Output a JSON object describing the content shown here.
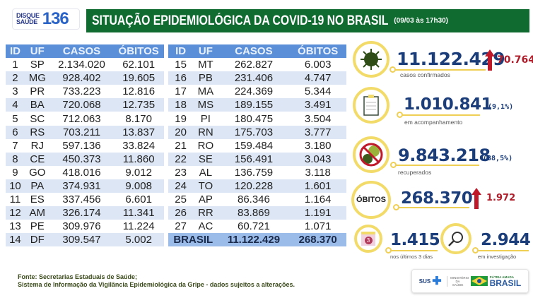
{
  "logo": {
    "line1": "DISQUE",
    "line2": "SAÚDE",
    "number": "136"
  },
  "header": {
    "title": "SITUAÇÃO EPIDEMIOLÓGICA DA COVID-19 NO BRASIL",
    "date": "(09/03 às 17h30)"
  },
  "table": {
    "columns": [
      "ID",
      "UF",
      "CASOS",
      "ÓBITOS"
    ],
    "rows": [
      [
        "1",
        "SP",
        "2.134.020",
        "62.101"
      ],
      [
        "2",
        "MG",
        "928.402",
        "19.605"
      ],
      [
        "3",
        "PR",
        "733.223",
        "12.816"
      ],
      [
        "4",
        "BA",
        "720.068",
        "12.735"
      ],
      [
        "5",
        "SC",
        "712.063",
        "8.170"
      ],
      [
        "6",
        "RS",
        "703.211",
        "13.837"
      ],
      [
        "7",
        "RJ",
        "597.136",
        "33.824"
      ],
      [
        "8",
        "CE",
        "450.373",
        "11.860"
      ],
      [
        "9",
        "GO",
        "418.016",
        "9.012"
      ],
      [
        "10",
        "PA",
        "374.931",
        "9.008"
      ],
      [
        "11",
        "ES",
        "337.456",
        "6.601"
      ],
      [
        "12",
        "AM",
        "326.174",
        "11.341"
      ],
      [
        "13",
        "PE",
        "309.976",
        "11.224"
      ],
      [
        "14",
        "DF",
        "309.547",
        "5.002"
      ],
      [
        "15",
        "MT",
        "262.827",
        "6.003"
      ],
      [
        "16",
        "PB",
        "231.406",
        "4.747"
      ],
      [
        "17",
        "MA",
        "224.369",
        "5.344"
      ],
      [
        "18",
        "MS",
        "189.155",
        "3.491"
      ],
      [
        "19",
        "PI",
        "180.475",
        "3.504"
      ],
      [
        "20",
        "RN",
        "175.703",
        "3.777"
      ],
      [
        "21",
        "RO",
        "159.484",
        "3.180"
      ],
      [
        "22",
        "SE",
        "156.491",
        "3.043"
      ],
      [
        "23",
        "AL",
        "136.759",
        "3.118"
      ],
      [
        "24",
        "TO",
        "120.228",
        "1.601"
      ],
      [
        "25",
        "AP",
        "86.346",
        "1.164"
      ],
      [
        "26",
        "RR",
        "83.869",
        "1.191"
      ],
      [
        "27",
        "AC",
        "60.721",
        "1.071"
      ]
    ],
    "total": {
      "label": "BRASIL",
      "casos": "11.122.429",
      "obitos": "268.370"
    }
  },
  "stats": {
    "confirmados": {
      "value": "11.122.429",
      "delta": "70.764",
      "label": "casos confirmados",
      "icon": "virus-icon"
    },
    "acompanhamento": {
      "value": "1.010.841",
      "pct": "(9,1%)",
      "label": "em acompanhamento",
      "icon": "clipboard-icon"
    },
    "recuperados": {
      "value": "9.843.218",
      "pct": "(88,5%)",
      "label": "recuperados",
      "icon": "no-virus-icon"
    },
    "obitos": {
      "badge": "ÓBITOS",
      "value": "268.370",
      "delta": "1.972"
    },
    "ultimos": {
      "value": "1.415",
      "label": "nos últimos 3 dias",
      "calendar": "3",
      "icon": "calendar-icon"
    },
    "investigacao": {
      "value": "2.944",
      "label": "em investigação",
      "icon": "magnifier-icon"
    }
  },
  "footer": {
    "line1": "Fonte: Secretarias Estaduais de Saúde;",
    "line2": "Sistema de Informação da Vigilância Epidemiológica da Gripe - dados sujeitos a alterações."
  },
  "logos": {
    "sus": "SUS",
    "ministerio": "MINISTÉRIO DA SAÚDE",
    "patria": "PÁTRIA AMADA",
    "brasil": "BRASIL"
  },
  "colors": {
    "header_green": "#0f6b30",
    "table_header": "#5b8fd8",
    "row_alt": "#dce6f4",
    "navy": "#1b3d7a",
    "red": "#b01d2a",
    "yellow": "#f3db6a"
  }
}
